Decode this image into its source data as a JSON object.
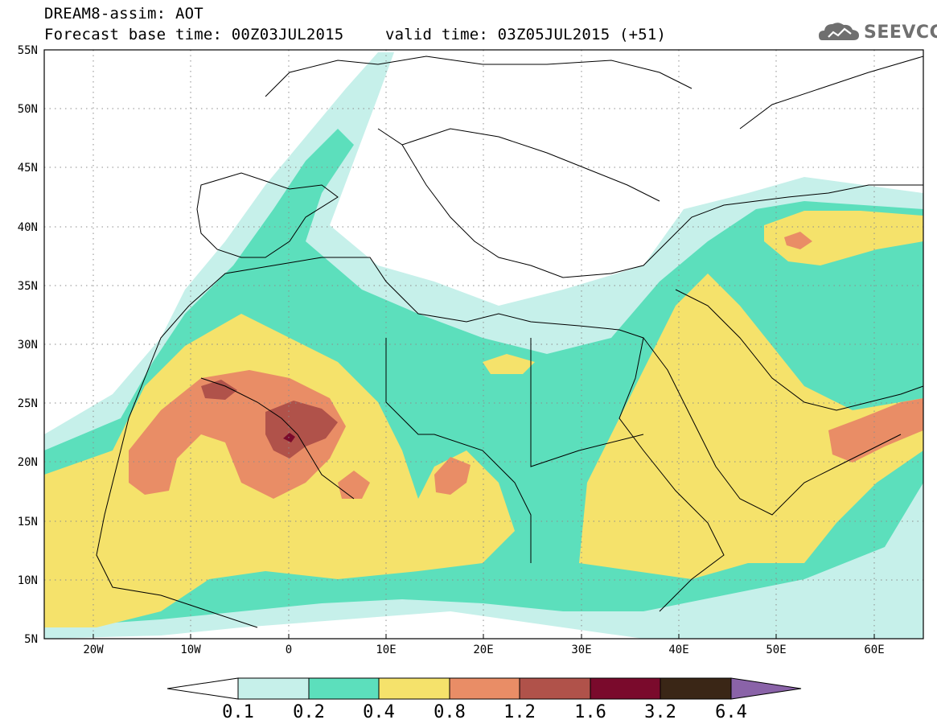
{
  "header": {
    "line1": "DREAM8-assim: AOT",
    "line2": "Forecast base time: 00Z03JUL2015",
    "line3": "valid time: 03Z05JUL2015 (+51)"
  },
  "logo": {
    "text": "SEEVCCC",
    "icon": "cloud-icon"
  },
  "map": {
    "lon_range": [
      -25,
      65
    ],
    "lat_range": [
      5,
      55
    ],
    "lat_labels": [
      "55N",
      "50N",
      "45N",
      "40N",
      "35N",
      "30N",
      "25N",
      "20N",
      "15N",
      "10N",
      "5N"
    ],
    "lon_labels": [
      "20W",
      "10W",
      "0",
      "10E",
      "20E",
      "30E",
      "40E",
      "50E",
      "60E"
    ],
    "grid": "dotted"
  },
  "colorbar": {
    "labels": [
      "0.1",
      "0.2",
      "0.4",
      "0.8",
      "1.2",
      "1.6",
      "3.2",
      "6.4"
    ],
    "colors": [
      "#c6f0ea",
      "#5cdfbc",
      "#f5e26b",
      "#e98d66",
      "#b0524a",
      "#7a0a2c",
      "#3a2616",
      "#8a63a8"
    ],
    "under_color": "#ffffff"
  }
}
